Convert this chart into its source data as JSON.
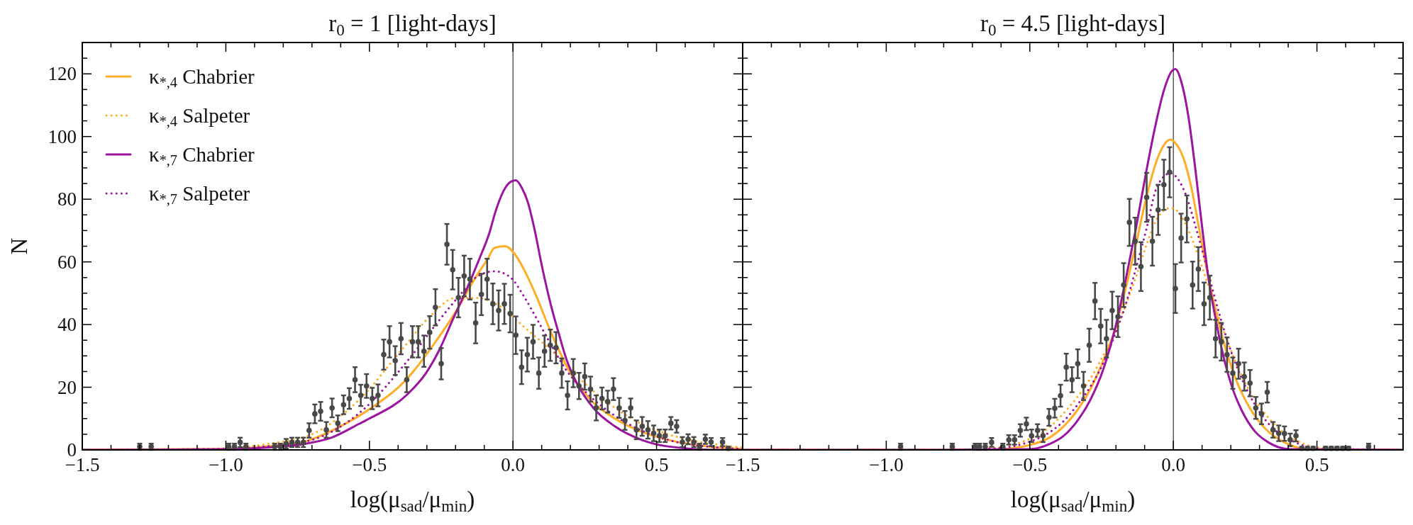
{
  "chart_data": [
    {
      "type": "line",
      "title": "r$_{0}$ = 1 [light-days]",
      "xlabel": "log(μ$_{sad}$/μ$_{min}$)",
      "ylabel": "N",
      "legend": "top left",
      "xlim": [
        -1.5,
        0.8
      ],
      "ylim": [
        0,
        130
      ],
      "xticks": [
        {
          "value": -1.5,
          "label": "−1.5"
        },
        {
          "value": -1.4,
          "label": null
        },
        {
          "value": -1.3,
          "label": null
        },
        {
          "value": -1.2,
          "label": null
        },
        {
          "value": -1.1,
          "label": null
        },
        {
          "value": -1.0,
          "label": "−1.0"
        },
        {
          "value": -0.9,
          "label": null
        },
        {
          "value": -0.8,
          "label": null
        },
        {
          "value": -0.7,
          "label": null
        },
        {
          "value": -0.6,
          "label": null
        },
        {
          "value": -0.5,
          "label": "−0.5"
        },
        {
          "value": -0.4,
          "label": null
        },
        {
          "value": -0.3,
          "label": null
        },
        {
          "value": -0.2,
          "label": null
        },
        {
          "value": -0.1,
          "label": null
        },
        {
          "value": 0,
          "label": "0.0"
        },
        {
          "value": 0.1,
          "label": null
        },
        {
          "value": 0.2,
          "label": null
        },
        {
          "value": 0.3,
          "label": null
        },
        {
          "value": 0.4,
          "label": null
        },
        {
          "value": 0.5,
          "label": "0.5"
        },
        {
          "value": 0.6,
          "label": null
        },
        {
          "value": 0.7,
          "label": null
        }
      ],
      "yticks": [
        0,
        {
          "value": 5,
          "label": null
        },
        {
          "value": 10,
          "label": null
        },
        {
          "value": 15,
          "label": null
        },
        20,
        {
          "value": 25,
          "label": null
        },
        {
          "value": 30,
          "label": null
        },
        {
          "value": 35,
          "label": null
        },
        40,
        {
          "value": 45,
          "label": null
        },
        {
          "value": 50,
          "label": null
        },
        {
          "value": 55,
          "label": null
        },
        60,
        {
          "value": 65,
          "label": null
        },
        {
          "value": 70,
          "label": null
        },
        {
          "value": 75,
          "label": null
        },
        80,
        {
          "value": 85,
          "label": null
        },
        {
          "value": 90,
          "label": null
        },
        {
          "value": 95,
          "label": null
        },
        100,
        {
          "value": 105,
          "label": null
        },
        {
          "value": 110,
          "label": null
        },
        {
          "value": 115,
          "label": null
        },
        120,
        {
          "value": 125,
          "label": null
        }
      ],
      "ref_lines": [
        {
          "axis": "x",
          "value": 0,
          "color": "#333333"
        }
      ],
      "series": [
        {
          "name": "κ$_{*,4}$ Chabrier",
          "color": "#ffad26",
          "line_style": "solid",
          "x": [
            -1.5,
            -1.0,
            -0.85,
            -0.72,
            -0.63,
            -0.5,
            -0.368,
            -0.275,
            -0.2,
            -0.135,
            -0.088,
            -0.064,
            -0.027,
            0.01,
            0.047,
            0.085,
            0.122,
            0.159,
            0.206,
            0.262,
            0.355,
            0.448,
            0.54,
            0.68,
            0.8
          ],
          "values": [
            0,
            0.3,
            1.2,
            2.8,
            6.2,
            13,
            22.8,
            33.8,
            44,
            54.3,
            61,
            64.5,
            65,
            62,
            56,
            48.3,
            39.8,
            32,
            23.6,
            16.8,
            10,
            5.8,
            3.2,
            1.1,
            0.3
          ]
        },
        {
          "name": "κ$_{*,4}$ Salpeter",
          "color": "#ffad26",
          "line_style": "dotted",
          "x": [
            -1.5,
            -1.0,
            -0.85,
            -0.7,
            -0.536,
            -0.387,
            -0.285,
            -0.2,
            -0.13,
            -0.08,
            -0.017,
            0.029,
            0.075,
            0.131,
            0.187,
            0.262,
            0.355,
            0.448,
            0.54,
            0.727,
            0.8
          ],
          "values": [
            0,
            0.5,
            2,
            5,
            16,
            32,
            43,
            48.5,
            48.5,
            47.5,
            44,
            40,
            36.4,
            32,
            27,
            20.2,
            13.4,
            8.3,
            5,
            1.5,
            0.8
          ]
        },
        {
          "name": "κ$_{*,7}$ Chabrier",
          "color": "#9c14a0",
          "line_style": "solid",
          "x": [
            -1.5,
            -1.0,
            -0.85,
            -0.72,
            -0.63,
            -0.536,
            -0.5,
            -0.368,
            -0.303,
            -0.256,
            -0.21,
            -0.163,
            -0.117,
            -0.083,
            -0.061,
            -0.027,
            -0.007,
            0.01,
            0.031,
            0.052,
            0.075,
            0.103,
            0.131,
            0.159,
            0.187,
            0.224,
            0.28,
            0.355,
            0.448,
            0.54,
            0.727,
            0.8
          ],
          "values": [
            0,
            0.2,
            0.8,
            2,
            4,
            8.3,
            10,
            17.7,
            24.5,
            32,
            41.5,
            50.9,
            61,
            69,
            76,
            83.6,
            85.6,
            86,
            83.6,
            79,
            70.4,
            57.7,
            46.6,
            37.3,
            28.7,
            21,
            13.4,
            7.5,
            3.2,
            1.1,
            0,
            0
          ]
        },
        {
          "name": "κ$_{*,7}$ Salpeter",
          "color": "#9c14a0",
          "line_style": "dotted",
          "x": [
            -1.5,
            -1.0,
            -0.85,
            -0.7,
            -0.536,
            -0.35,
            -0.256,
            -0.163,
            -0.13,
            -0.064,
            -0.008,
            0.038,
            0.085,
            0.131,
            0.187,
            0.262,
            0.355,
            0.448,
            0.54,
            0.727,
            0.8
          ],
          "values": [
            0,
            0.3,
            1.2,
            3.2,
            11.7,
            30.4,
            41.5,
            51.7,
            55,
            57,
            55,
            49,
            41.5,
            33.8,
            25.3,
            17.7,
            10.9,
            6.2,
            3.2,
            0.7,
            0.3
          ]
        },
        {
          "type": "scatter",
          "color": "#484848",
          "marker": "circle",
          "x": [
            -1.3,
            -1.26,
            -0.99,
            -0.97,
            -0.95,
            -0.93,
            -0.83,
            -0.81,
            -0.79,
            -0.77,
            -0.75,
            -0.73,
            -0.71,
            -0.69,
            -0.67,
            -0.65,
            -0.63,
            -0.61,
            -0.59,
            -0.57,
            -0.55,
            -0.53,
            -0.51,
            -0.49,
            -0.47,
            -0.45,
            -0.43,
            -0.41,
            -0.39,
            -0.37,
            -0.35,
            -0.33,
            -0.31,
            -0.29,
            -0.27,
            -0.25,
            -0.23,
            -0.21,
            -0.19,
            -0.17,
            -0.15,
            -0.13,
            -0.11,
            -0.09,
            -0.07,
            -0.05,
            -0.03,
            -0.01,
            0.01,
            0.03,
            0.05,
            0.07,
            0.09,
            0.11,
            0.13,
            0.15,
            0.17,
            0.19,
            0.21,
            0.23,
            0.25,
            0.27,
            0.29,
            0.31,
            0.33,
            0.35,
            0.37,
            0.39,
            0.41,
            0.43,
            0.45,
            0.47,
            0.49,
            0.51,
            0.53,
            0.55,
            0.57,
            0.59,
            0.61,
            0.63,
            0.65,
            0.67,
            0.69,
            0.73,
            0.75
          ],
          "values": [
            1,
            1,
            1,
            1,
            2.4,
            1,
            1,
            1,
            2,
            2.4,
            2.4,
            2.4,
            6.2,
            11.5,
            12.3,
            6.4,
            13.4,
            8.5,
            14.4,
            16.4,
            22.4,
            17.4,
            20.4,
            16.4,
            17.4,
            30.4,
            34.5,
            28.5,
            35.5,
            22.4,
            34.5,
            34.5,
            31.5,
            37.5,
            45.5,
            27.5,
            65.6,
            57.5,
            48.6,
            55.5,
            54.5,
            40.5,
            49.6,
            54.5,
            46.6,
            44.5,
            46.6,
            43.5,
            36.6,
            26.4,
            30.4,
            34.5,
            24.5,
            31.5,
            33.4,
            32.6,
            24.5,
            17.4,
            24.5,
            20.4,
            23.4,
            19.4,
            13.4,
            16.4,
            15.4,
            19.4,
            13.4,
            9.4,
            13.4,
            6.4,
            7.5,
            6.4,
            5.3,
            4.5,
            4.5,
            8.5,
            7.5,
            2.5,
            3.4,
            2.5,
            1,
            3.4,
            2.5,
            2.5,
            0.5
          ],
          "errors": [
            1,
            1,
            1,
            1,
            1.5,
            1,
            1,
            1,
            1.5,
            1.5,
            1.5,
            1.5,
            2.3,
            3,
            3,
            2.5,
            3,
            2.5,
            3,
            3.3,
            4,
            3.4,
            3.8,
            3.4,
            3.5,
            4.8,
            5,
            4.6,
            5,
            4,
            5,
            5,
            5,
            5.2,
            5.8,
            5,
            6.5,
            6.3,
            6.3,
            6.5,
            6.5,
            6.5,
            6.6,
            6.5,
            6.5,
            6.4,
            6.4,
            6,
            6,
            5.4,
            5.4,
            5.4,
            5,
            5,
            5,
            5,
            4.7,
            4.5,
            4.5,
            4.2,
            4.2,
            4,
            4,
            3.5,
            3.5,
            3.5,
            3.2,
            3,
            3,
            3,
            3,
            2.8,
            2.5,
            2,
            2,
            2,
            2,
            1.6,
            1.6,
            1.6,
            1,
            1.5,
            1.3,
            1.3,
            0.5
          ]
        }
      ]
    },
    {
      "type": "line",
      "title": "r$_{0}$ = 4.5 [light-days]",
      "xlabel": "log(μ$_{sad}$/μ$_{min}$)",
      "tick_labels": "x",
      "xlim": [
        -1.5,
        0.8
      ],
      "ylim": [
        0,
        130
      ],
      "xticks": [
        {
          "value": -1.5,
          "label": "−1.5"
        },
        {
          "value": -1.4,
          "label": null
        },
        {
          "value": -1.3,
          "label": null
        },
        {
          "value": -1.2,
          "label": null
        },
        {
          "value": -1.1,
          "label": null
        },
        {
          "value": -1.0,
          "label": "−1.0"
        },
        {
          "value": -0.9,
          "label": null
        },
        {
          "value": -0.8,
          "label": null
        },
        {
          "value": -0.7,
          "label": null
        },
        {
          "value": -0.6,
          "label": null
        },
        {
          "value": -0.5,
          "label": "−0.5"
        },
        {
          "value": -0.4,
          "label": null
        },
        {
          "value": -0.3,
          "label": null
        },
        {
          "value": -0.2,
          "label": null
        },
        {
          "value": -0.1,
          "label": null
        },
        {
          "value": 0,
          "label": "0.0"
        },
        {
          "value": 0.1,
          "label": null
        },
        {
          "value": 0.2,
          "label": null
        },
        {
          "value": 0.3,
          "label": null
        },
        {
          "value": 0.4,
          "label": null
        },
        {
          "value": 0.5,
          "label": "0.5"
        },
        {
          "value": 0.6,
          "label": null
        },
        {
          "value": 0.7,
          "label": null
        }
      ],
      "yticks": [
        0,
        {
          "value": 5,
          "label": null
        },
        {
          "value": 10,
          "label": null
        },
        {
          "value": 15,
          "label": null
        },
        20,
        {
          "value": 25,
          "label": null
        },
        {
          "value": 30,
          "label": null
        },
        {
          "value": 35,
          "label": null
        },
        40,
        {
          "value": 45,
          "label": null
        },
        {
          "value": 50,
          "label": null
        },
        {
          "value": 55,
          "label": null
        },
        60,
        {
          "value": 65,
          "label": null
        },
        {
          "value": 70,
          "label": null
        },
        {
          "value": 75,
          "label": null
        },
        80,
        {
          "value": 85,
          "label": null
        },
        {
          "value": 90,
          "label": null
        },
        {
          "value": 95,
          "label": null
        },
        100,
        {
          "value": 105,
          "label": null
        },
        {
          "value": 110,
          "label": null
        },
        {
          "value": 115,
          "label": null
        },
        120,
        {
          "value": 125,
          "label": null
        }
      ],
      "ref_lines": [
        {
          "axis": "x",
          "value": 0,
          "color": "#333333"
        }
      ],
      "series": [
        {
          "color": "#ffad26",
          "line_style": "solid",
          "x": [
            -1.5,
            -0.8,
            -0.615,
            -0.503,
            -0.428,
            -0.382,
            -0.335,
            -0.289,
            -0.243,
            -0.205,
            -0.168,
            -0.131,
            -0.094,
            -0.057,
            -0.01,
            0.006,
            0.034,
            0.062,
            0.09,
            0.118,
            0.146,
            0.183,
            0.22,
            0.266,
            0.322,
            0.387,
            0.471,
            0.8
          ],
          "values": [
            0,
            0,
            0.2,
            1.5,
            4.1,
            7.5,
            12.6,
            19.4,
            28.7,
            38,
            50.9,
            65.3,
            80.6,
            92.6,
            99,
            98,
            93.4,
            84,
            70.4,
            56.8,
            45,
            32,
            22,
            13.4,
            6.6,
            2.4,
            0.2,
            0
          ]
        },
        {
          "color": "#ffad26",
          "line_style": "dotted",
          "x": [
            -1.5,
            -0.8,
            -0.615,
            -0.521,
            -0.428,
            -0.382,
            -0.335,
            -0.289,
            -0.243,
            -0.205,
            -0.168,
            -0.131,
            -0.094,
            -0.057,
            -0.01,
            0.006,
            0.043,
            0.08,
            0.118,
            0.155,
            0.192,
            0.238,
            0.285,
            0.35,
            0.425,
            0.517,
            0.8
          ],
          "values": [
            0,
            0,
            0.7,
            2.8,
            7.5,
            11.7,
            16.8,
            22.8,
            30.4,
            37.2,
            45.8,
            55,
            65.3,
            73.8,
            77.2,
            76.8,
            72,
            63.6,
            53.4,
            43.2,
            33.8,
            23.6,
            16,
            8.3,
            3.2,
            0.7,
            0
          ]
        },
        {
          "color": "#9c14a0",
          "line_style": "solid",
          "x": [
            -1.5,
            -0.8,
            -0.503,
            -0.428,
            -0.382,
            -0.335,
            -0.289,
            -0.243,
            -0.205,
            -0.168,
            -0.131,
            -0.094,
            -0.066,
            -0.033,
            -0.004,
            0.007,
            0.029,
            0.053,
            0.076,
            0.099,
            0.122,
            0.146,
            0.173,
            0.201,
            0.238,
            0.285,
            0.331,
            0.406,
            0.8
          ],
          "values": [
            0,
            0,
            0.2,
            2,
            4.5,
            9.2,
            16,
            26,
            38,
            53.4,
            70.4,
            89,
            102,
            114.7,
            121,
            121.5,
            117,
            106,
            90,
            72,
            55,
            42.4,
            30.4,
            21,
            12.6,
            5.8,
            2.4,
            0.2,
            0
          ]
        },
        {
          "color": "#9c14a0",
          "line_style": "dotted",
          "x": [
            -1.5,
            -0.8,
            -0.615,
            -0.521,
            -0.428,
            -0.382,
            -0.335,
            -0.289,
            -0.243,
            -0.205,
            -0.168,
            -0.131,
            -0.094,
            -0.057,
            -0.01,
            0.006,
            0.043,
            0.08,
            0.118,
            0.155,
            0.192,
            0.238,
            0.285,
            0.35,
            0.425,
            0.517,
            0.8
          ],
          "values": [
            0,
            0,
            0.5,
            2,
            5.8,
            9.2,
            14.3,
            20.2,
            27.9,
            36.4,
            45.8,
            57.7,
            70.4,
            84,
            88.3,
            87.5,
            81.5,
            70.4,
            57.7,
            45,
            33.8,
            22.8,
            14.3,
            6.6,
            2.4,
            0.2,
            0
          ]
        },
        {
          "type": "scatter",
          "color": "#484848",
          "marker": "circle",
          "x": [
            -0.95,
            -0.77,
            -0.69,
            -0.675,
            -0.655,
            -0.633,
            -0.594,
            -0.573,
            -0.553,
            -0.533,
            -0.512,
            -0.494,
            -0.473,
            -0.454,
            -0.433,
            -0.413,
            -0.393,
            -0.373,
            -0.353,
            -0.333,
            -0.313,
            -0.293,
            -0.273,
            -0.253,
            -0.233,
            -0.213,
            -0.193,
            -0.173,
            -0.153,
            -0.133,
            -0.113,
            -0.093,
            -0.073,
            -0.053,
            -0.033,
            -0.013,
            0.007,
            0.027,
            0.047,
            0.067,
            0.087,
            0.107,
            0.127,
            0.147,
            0.167,
            0.187,
            0.207,
            0.227,
            0.247,
            0.267,
            0.287,
            0.307,
            0.327,
            0.347,
            0.367,
            0.387,
            0.407,
            0.427,
            0.447,
            0.467,
            0.487,
            0.53,
            0.55,
            0.57,
            0.59,
            0.61,
            0.68
          ],
          "values": [
            1,
            1,
            1,
            1,
            1,
            2.4,
            1,
            3.2,
            3.2,
            6.2,
            8.3,
            4.5,
            6.2,
            4.5,
            10.4,
            13.3,
            17.3,
            26.4,
            22.4,
            27.5,
            20.4,
            33.4,
            47.5,
            39.5,
            35.5,
            44.5,
            42.5,
            52.6,
            72.6,
            66.6,
            58.5,
            80.6,
            66.6,
            76.6,
            84.6,
            88.6,
            51.5,
            67.6,
            73.7,
            52.6,
            57.7,
            46.6,
            48.6,
            35.5,
            34.5,
            30.4,
            24.5,
            27.5,
            23.4,
            21.3,
            13.4,
            11.5,
            18.4,
            6.4,
            5.3,
            5.2,
            3.2,
            4.5,
            0.5,
            0.5,
            0.5,
            0.5,
            0.5,
            0.5,
            0.5,
            0.5,
            1
          ],
          "errors": [
            1,
            1,
            1,
            1,
            1,
            1.4,
            1,
            1.5,
            1.5,
            2,
            2,
            2,
            2,
            2,
            2.7,
            3,
            3.5,
            4.3,
            4,
            4.6,
            4.5,
            5.3,
            5.8,
            5.5,
            6,
            6,
            6.5,
            7,
            7.5,
            7.5,
            7.8,
            7.8,
            7.8,
            8,
            8,
            8,
            7.8,
            7.8,
            7.5,
            7.5,
            7,
            6.8,
            7,
            6,
            6,
            5.5,
            5,
            4.8,
            4.5,
            4.2,
            3.5,
            3.3,
            3.3,
            2.5,
            2.5,
            2.3,
            2,
            1.8,
            0.5,
            0.5,
            0.5,
            0.5,
            0.5,
            0.5,
            0.5,
            0.5,
            1
          ]
        }
      ]
    }
  ]
}
